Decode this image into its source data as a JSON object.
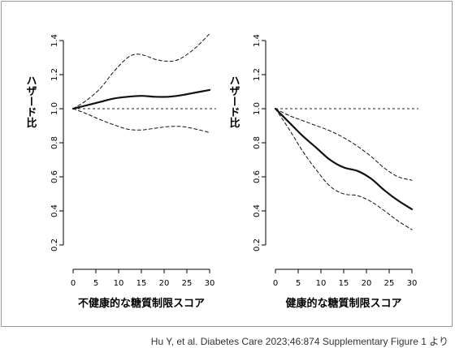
{
  "chart_data": [
    {
      "type": "line",
      "ylabel": "ハザード比",
      "xlabel": "不健康的な糖質制限スコア",
      "xlim": [
        0,
        30
      ],
      "ylim": [
        0.2,
        1.4
      ],
      "xticks": [
        0,
        5,
        10,
        15,
        20,
        25,
        30
      ],
      "yticks": [
        "0.2",
        "0.4",
        "0.6",
        "0.8",
        "1.0",
        "1.2",
        "1.4"
      ],
      "reference_line": 1.0,
      "series": [
        {
          "style": "solid",
          "x": [
            0,
            3,
            6,
            9,
            12,
            15,
            18,
            21,
            24,
            27,
            30
          ],
          "y": [
            1.0,
            1.02,
            1.04,
            1.06,
            1.07,
            1.075,
            1.07,
            1.07,
            1.08,
            1.095,
            1.11
          ]
        },
        {
          "style": "dashed",
          "x": [
            0,
            3,
            6,
            9,
            12,
            14,
            16,
            18,
            20,
            22,
            24,
            27,
            30
          ],
          "y": [
            1.0,
            1.05,
            1.12,
            1.22,
            1.3,
            1.32,
            1.31,
            1.29,
            1.28,
            1.28,
            1.3,
            1.36,
            1.44
          ]
        },
        {
          "style": "dashed",
          "x": [
            0,
            3,
            6,
            9,
            12,
            15,
            18,
            21,
            24,
            27,
            30
          ],
          "y": [
            1.0,
            0.97,
            0.935,
            0.905,
            0.88,
            0.875,
            0.885,
            0.895,
            0.895,
            0.88,
            0.86
          ]
        }
      ]
    },
    {
      "type": "line",
      "ylabel": "ハザード比",
      "xlabel": "健康的な糖質制限スコア",
      "xlim": [
        0,
        30
      ],
      "ylim": [
        0.2,
        1.4
      ],
      "xticks": [
        0,
        5,
        10,
        15,
        20,
        25,
        30
      ],
      "yticks": [
        "0.2",
        "0.4",
        "0.6",
        "0.8",
        "1.0",
        "1.2",
        "1.4"
      ],
      "reference_line": 1.0,
      "series": [
        {
          "style": "solid",
          "x": [
            0,
            3,
            6,
            9,
            12,
            15,
            18,
            21,
            24,
            27,
            30
          ],
          "y": [
            1.0,
            0.92,
            0.84,
            0.77,
            0.7,
            0.655,
            0.635,
            0.59,
            0.52,
            0.46,
            0.41
          ]
        },
        {
          "style": "dashed",
          "x": [
            0,
            3,
            6,
            9,
            12,
            15,
            18,
            21,
            24,
            27,
            30
          ],
          "y": [
            1.0,
            0.96,
            0.93,
            0.9,
            0.87,
            0.83,
            0.78,
            0.72,
            0.65,
            0.6,
            0.58
          ]
        },
        {
          "style": "dashed",
          "x": [
            0,
            3,
            6,
            9,
            12,
            15,
            18,
            21,
            24,
            27,
            30
          ],
          "y": [
            1.0,
            0.88,
            0.75,
            0.64,
            0.545,
            0.5,
            0.49,
            0.455,
            0.4,
            0.34,
            0.29
          ]
        }
      ]
    }
  ],
  "source": "Hu Y, et al. Diabetes Care 2023;46:874 Supplementary Figure 1 より"
}
